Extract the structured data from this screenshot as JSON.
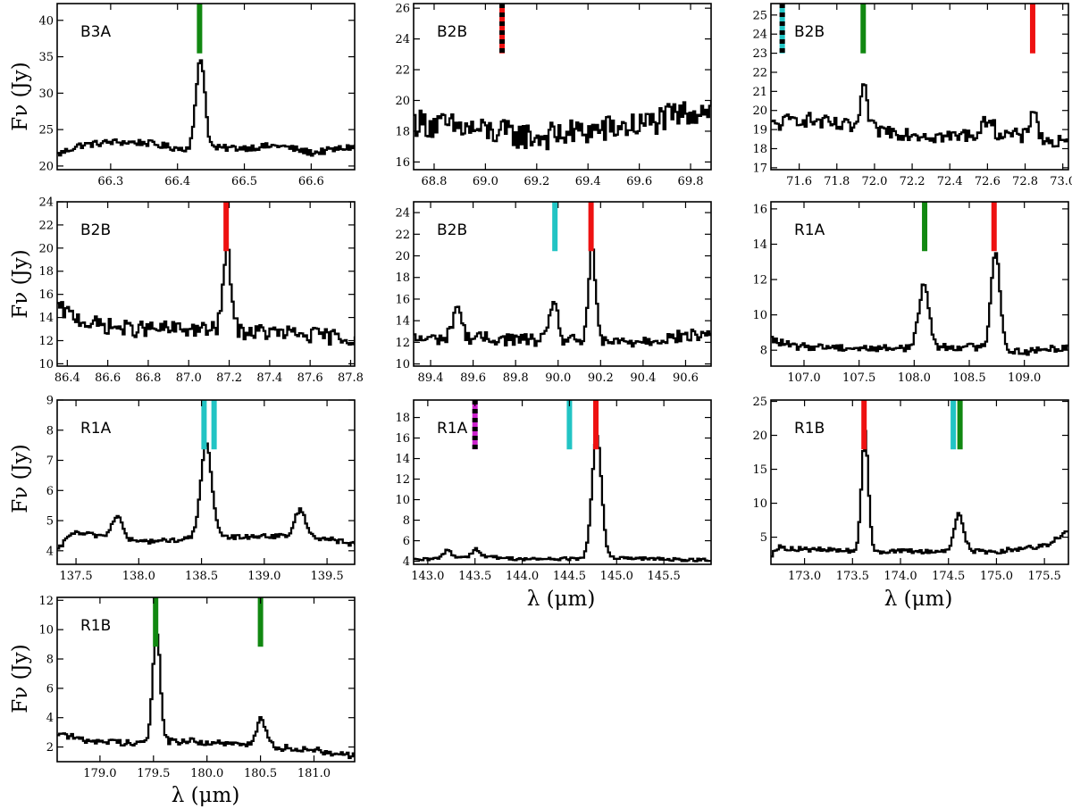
{
  "figure": {
    "ylabel": "Fν (Jy)",
    "xlabel": "λ (μm)"
  },
  "colors": {
    "red": "#ee1111",
    "green": "#118811",
    "cyan": "#22c4c4",
    "magenta": "#cc22cc",
    "black": "#000000",
    "line": "#000000"
  },
  "chart_data": [
    {
      "type": "line",
      "panel": "B3A",
      "xlim": [
        66.22,
        66.665
      ],
      "ylim": [
        19.5,
        42.3
      ],
      "xticks": [
        66.3,
        66.4,
        66.5,
        66.6
      ],
      "xtick_labels": [
        "66.3",
        "66.4",
        "66.5",
        "66.6"
      ],
      "yticks": [
        20,
        25,
        30,
        35,
        40
      ],
      "ytick_labels": [
        "20",
        "25",
        "30",
        "35",
        "40"
      ],
      "noise": 0.45,
      "baseline": [
        [
          66.22,
          21.6
        ],
        [
          66.25,
          22.8
        ],
        [
          66.3,
          23.3
        ],
        [
          66.35,
          23.2
        ],
        [
          66.4,
          22.4
        ],
        [
          66.5,
          22.5
        ],
        [
          66.55,
          22.8
        ],
        [
          66.6,
          21.8
        ],
        [
          66.665,
          22.7
        ]
      ],
      "peaks": [
        {
          "x": 66.433,
          "amp": 12.5,
          "w": 0.0065
        }
      ],
      "markers": [
        {
          "x": 66.433,
          "style": "green"
        }
      ]
    },
    {
      "type": "line",
      "panel": "B2B",
      "xlim": [
        68.72,
        69.88
      ],
      "ylim": [
        15.5,
        26.3
      ],
      "xticks": [
        68.8,
        69.0,
        69.2,
        69.4,
        69.6,
        69.8
      ],
      "xtick_labels": [
        "68.8",
        "69.0",
        "69.2",
        "69.4",
        "69.6",
        "69.8"
      ],
      "yticks": [
        16,
        18,
        20,
        22,
        24,
        26
      ],
      "ytick_labels": [
        "16",
        "18",
        "20",
        "22",
        "24",
        "26"
      ],
      "noise": 0.9,
      "baseline": [
        [
          68.72,
          18.6
        ],
        [
          69.0,
          18.0
        ],
        [
          69.2,
          17.6
        ],
        [
          69.4,
          18.0
        ],
        [
          69.6,
          18.4
        ],
        [
          69.88,
          19.6
        ]
      ],
      "peaks": [],
      "markers": [
        {
          "x": 69.065,
          "style": "red-black"
        }
      ]
    },
    {
      "type": "line",
      "panel": "B2B",
      "xlim": [
        71.45,
        73.03
      ],
      "ylim": [
        16.9,
        25.6
      ],
      "xticks": [
        71.6,
        71.8,
        72.0,
        72.2,
        72.4,
        72.6,
        72.8,
        73.0
      ],
      "xtick_labels": [
        "71.6",
        "71.8",
        "72.0",
        "72.2",
        "72.4",
        "72.6",
        "72.8",
        "73.0"
      ],
      "yticks": [
        17,
        18,
        19,
        20,
        21,
        22,
        23,
        24,
        25
      ],
      "ytick_labels": [
        "17",
        "18",
        "19",
        "20",
        "21",
        "22",
        "23",
        "24",
        "25"
      ],
      "noise": 0.4,
      "baseline": [
        [
          71.45,
          19.2
        ],
        [
          71.6,
          19.6
        ],
        [
          71.8,
          19.2
        ],
        [
          72.0,
          19.0
        ],
        [
          72.4,
          18.6
        ],
        [
          72.6,
          18.9
        ],
        [
          73.03,
          18.2
        ]
      ],
      "peaks": [
        {
          "x": 71.94,
          "amp": 2.0,
          "w": 0.018
        },
        {
          "x": 72.84,
          "amp": 1.7,
          "w": 0.018
        },
        {
          "x": 72.6,
          "amp": 0.8,
          "w": 0.02
        }
      ],
      "markers": [
        {
          "x": 71.51,
          "style": "cyan-black"
        },
        {
          "x": 71.94,
          "style": "green"
        },
        {
          "x": 72.84,
          "style": "red"
        }
      ]
    },
    {
      "type": "line",
      "panel": "B2B",
      "xlim": [
        86.35,
        87.82
      ],
      "ylim": [
        9.8,
        24.0
      ],
      "xticks": [
        86.4,
        86.6,
        86.8,
        87.0,
        87.2,
        87.4,
        87.6,
        87.8
      ],
      "xtick_labels": [
        "86.4",
        "86.6",
        "86.8",
        "87.0",
        "87.2",
        "87.4",
        "87.6",
        "87.8"
      ],
      "yticks": [
        10,
        12,
        14,
        16,
        18,
        20,
        22,
        24
      ],
      "ytick_labels": [
        "10",
        "12",
        "14",
        "16",
        "18",
        "20",
        "22",
        "24"
      ],
      "noise": 0.7,
      "baseline": [
        [
          86.35,
          14.8
        ],
        [
          86.5,
          13.5
        ],
        [
          86.7,
          13.0
        ],
        [
          87.0,
          13.0
        ],
        [
          87.4,
          12.7
        ],
        [
          87.82,
          12.2
        ]
      ],
      "peaks": [
        {
          "x": 87.185,
          "amp": 6.9,
          "w": 0.02
        }
      ],
      "markers": [
        {
          "x": 87.185,
          "style": "red"
        }
      ]
    },
    {
      "type": "line",
      "panel": "B2B",
      "xlim": [
        89.32,
        90.72
      ],
      "ylim": [
        9.8,
        25.0
      ],
      "xticks": [
        89.4,
        89.6,
        89.8,
        90.0,
        90.2,
        90.4,
        90.6
      ],
      "xtick_labels": [
        "89.4",
        "89.6",
        "89.8",
        "90.0",
        "90.2",
        "90.4",
        "90.6"
      ],
      "yticks": [
        10,
        12,
        14,
        16,
        18,
        20,
        22,
        24
      ],
      "ytick_labels": [
        "10",
        "12",
        "14",
        "16",
        "18",
        "20",
        "22",
        "24"
      ],
      "noise": 0.6,
      "baseline": [
        [
          89.32,
          12.3
        ],
        [
          89.6,
          12.4
        ],
        [
          89.9,
          12.2
        ],
        [
          90.3,
          12.0
        ],
        [
          90.72,
          12.8
        ]
      ],
      "peaks": [
        {
          "x": 89.52,
          "amp": 3.0,
          "w": 0.02
        },
        {
          "x": 89.975,
          "amp": 4.0,
          "w": 0.017
        },
        {
          "x": 90.155,
          "amp": 8.8,
          "w": 0.016
        }
      ],
      "markers": [
        {
          "x": 89.985,
          "style": "cyan"
        },
        {
          "x": 90.155,
          "style": "red"
        }
      ]
    },
    {
      "type": "line",
      "panel": "R1A",
      "xlim": [
        106.7,
        109.4
      ],
      "ylim": [
        7.1,
        16.4
      ],
      "xticks": [
        107.0,
        107.5,
        108.0,
        108.5,
        109.0
      ],
      "xtick_labels": [
        "107.0",
        "107.5",
        "108.0",
        "108.5",
        "109.0"
      ],
      "yticks": [
        8,
        10,
        12,
        14,
        16
      ],
      "ytick_labels": [
        "8",
        "10",
        "12",
        "14",
        "16"
      ],
      "noise": 0.2,
      "baseline": [
        [
          106.7,
          8.6
        ],
        [
          106.9,
          8.2
        ],
        [
          107.2,
          8.2
        ],
        [
          107.5,
          8.1
        ],
        [
          108.5,
          8.2
        ],
        [
          109.0,
          7.9
        ],
        [
          109.4,
          8.2
        ]
      ],
      "peaks": [
        {
          "x": 108.08,
          "amp": 3.6,
          "w": 0.045
        },
        {
          "x": 108.73,
          "amp": 5.6,
          "w": 0.04
        }
      ],
      "markers": [
        {
          "x": 108.095,
          "style": "green"
        },
        {
          "x": 108.725,
          "style": "red"
        }
      ]
    },
    {
      "type": "line",
      "panel": "R1A",
      "xlim": [
        137.35,
        139.72
      ],
      "ylim": [
        3.55,
        9.0
      ],
      "xticks": [
        137.5,
        138.0,
        138.5,
        139.0,
        139.5
      ],
      "xtick_labels": [
        "137.5",
        "138.0",
        "138.5",
        "139.0",
        "139.5"
      ],
      "yticks": [
        4,
        5,
        6,
        7,
        8,
        9
      ],
      "ytick_labels": [
        "4",
        "5",
        "6",
        "7",
        "8",
        "9"
      ],
      "noise": 0.08,
      "baseline": [
        [
          137.35,
          4.0
        ],
        [
          137.45,
          4.6
        ],
        [
          137.7,
          4.5
        ],
        [
          138.0,
          4.3
        ],
        [
          138.5,
          4.4
        ],
        [
          139.0,
          4.5
        ],
        [
          139.5,
          4.4
        ],
        [
          139.72,
          4.2
        ]
      ],
      "peaks": [
        {
          "x": 137.82,
          "amp": 0.75,
          "w": 0.04
        },
        {
          "x": 138.53,
          "amp": 3.1,
          "w": 0.045
        },
        {
          "x": 139.28,
          "amp": 0.9,
          "w": 0.045
        }
      ],
      "markers": [
        {
          "x": 138.52,
          "style": "cyan"
        },
        {
          "x": 138.6,
          "style": "cyan"
        }
      ]
    },
    {
      "type": "line",
      "panel": "R1A",
      "xlim": [
        142.85,
        146.0
      ],
      "ylim": [
        3.7,
        19.7
      ],
      "xticks": [
        143.0,
        143.5,
        144.0,
        144.5,
        145.0,
        145.5
      ],
      "xtick_labels": [
        "143.0",
        "143.5",
        "144.0",
        "144.5",
        "145.0",
        "145.5"
      ],
      "yticks": [
        4,
        6,
        8,
        10,
        12,
        14,
        16,
        18
      ],
      "ytick_labels": [
        "4",
        "6",
        "8",
        "10",
        "12",
        "14",
        "16",
        "18"
      ],
      "noise": 0.15,
      "baseline": [
        [
          142.85,
          4.1
        ],
        [
          143.5,
          4.5
        ],
        [
          144.0,
          4.2
        ],
        [
          145.0,
          4.3
        ],
        [
          146.0,
          4.1
        ]
      ],
      "peaks": [
        {
          "x": 143.2,
          "amp": 0.8,
          "w": 0.04
        },
        {
          "x": 143.5,
          "amp": 0.7,
          "w": 0.04
        },
        {
          "x": 144.78,
          "amp": 12.0,
          "w": 0.05
        }
      ],
      "markers": [
        {
          "x": 143.5,
          "style": "magenta-black"
        },
        {
          "x": 144.5,
          "style": "cyan"
        },
        {
          "x": 144.78,
          "style": "red"
        }
      ]
    },
    {
      "type": "line",
      "panel": "R1B",
      "xlim": [
        172.65,
        175.75
      ],
      "ylim": [
        1.0,
        25.2
      ],
      "xticks": [
        173.0,
        173.5,
        174.0,
        174.5,
        175.0,
        175.5
      ],
      "xtick_labels": [
        "173.0",
        "173.5",
        "174.0",
        "174.5",
        "175.0",
        "175.5"
      ],
      "yticks": [
        5,
        10,
        15,
        20,
        25
      ],
      "ytick_labels": [
        "5",
        "10",
        "15",
        "20",
        "25"
      ],
      "noise": 0.35,
      "baseline": [
        [
          172.65,
          2.5
        ],
        [
          172.7,
          3.5
        ],
        [
          173.0,
          3.2
        ],
        [
          173.5,
          3.0
        ],
        [
          174.0,
          2.9
        ],
        [
          175.0,
          2.9
        ],
        [
          175.5,
          3.8
        ],
        [
          175.75,
          6.0
        ]
      ],
      "peaks": [
        {
          "x": 173.62,
          "amp": 17.5,
          "w": 0.035
        },
        {
          "x": 174.6,
          "amp": 5.5,
          "w": 0.05
        }
      ],
      "markers": [
        {
          "x": 173.62,
          "style": "red"
        },
        {
          "x": 174.55,
          "style": "cyan"
        },
        {
          "x": 174.62,
          "style": "green"
        }
      ]
    },
    {
      "type": "line",
      "panel": "R1B",
      "xlim": [
        178.6,
        181.38
      ],
      "ylim": [
        1.0,
        12.2
      ],
      "xticks": [
        179.0,
        179.5,
        180.0,
        180.5,
        181.0
      ],
      "xtick_labels": [
        "179.0",
        "179.5",
        "180.0",
        "180.5",
        "181.0"
      ],
      "yticks": [
        2,
        4,
        6,
        8,
        10,
        12
      ],
      "ytick_labels": [
        "2",
        "4",
        "6",
        "8",
        "10",
        "12"
      ],
      "noise": 0.22,
      "baseline": [
        [
          178.6,
          3.0
        ],
        [
          178.8,
          2.5
        ],
        [
          179.2,
          2.3
        ],
        [
          179.8,
          2.4
        ],
        [
          180.2,
          2.2
        ],
        [
          181.0,
          1.8
        ],
        [
          181.38,
          1.4
        ]
      ],
      "peaks": [
        {
          "x": 179.52,
          "amp": 7.5,
          "w": 0.035
        },
        {
          "x": 180.5,
          "amp": 1.8,
          "w": 0.05
        }
      ],
      "markers": [
        {
          "x": 179.52,
          "style": "green"
        },
        {
          "x": 180.5,
          "style": "green"
        }
      ]
    }
  ]
}
